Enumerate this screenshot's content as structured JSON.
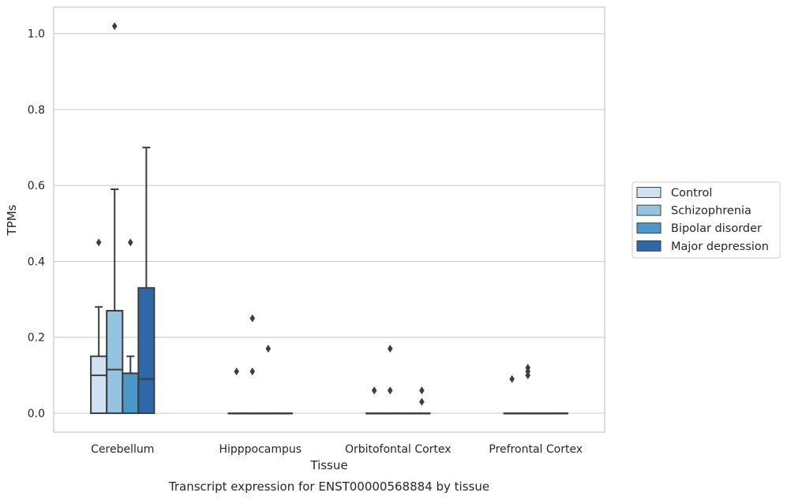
{
  "chart_data": {
    "type": "boxplot",
    "caption": "Transcript expression for ENST00000568884 by tissue",
    "xlabel": "Tissue",
    "ylabel": "TPMs",
    "ylim": [
      -0.05,
      1.07
    ],
    "yticks": [
      "0.0",
      "0.2",
      "0.4",
      "0.6",
      "0.8",
      "1.0"
    ],
    "grid": "horizontal",
    "legend_position": "right-outside",
    "categories": [
      "Cerebellum",
      "Hipppocampus",
      "Orbitofontal Cortex",
      "Prefrontal Cortex"
    ],
    "series": [
      {
        "name": "Control",
        "color": "#d0e1f2",
        "boxes": [
          {
            "q1": 0,
            "median": 0.1,
            "q3": 0.15,
            "whislo": 0,
            "whishi": 0.28,
            "fliers": [
              0.45
            ]
          },
          {
            "q1": 0,
            "median": 0,
            "q3": 0,
            "whislo": 0,
            "whishi": 0,
            "fliers": [
              0.11
            ]
          },
          {
            "q1": 0,
            "median": 0,
            "q3": 0,
            "whislo": 0,
            "whishi": 0,
            "fliers": [
              0.06
            ]
          },
          {
            "q1": 0,
            "median": 0,
            "q3": 0,
            "whislo": 0,
            "whishi": 0,
            "fliers": [
              0.09
            ]
          }
        ]
      },
      {
        "name": "Schizophrenia",
        "color": "#94c4df",
        "boxes": [
          {
            "q1": 0,
            "median": 0.115,
            "q3": 0.27,
            "whislo": 0,
            "whishi": 0.59,
            "fliers": [
              1.02
            ]
          },
          {
            "q1": 0,
            "median": 0,
            "q3": 0,
            "whislo": 0,
            "whishi": 0,
            "fliers": [
              0.25,
              0.11
            ]
          },
          {
            "q1": 0,
            "median": 0,
            "q3": 0,
            "whislo": 0,
            "whishi": 0,
            "fliers": [
              0.17,
              0.06
            ]
          },
          {
            "q1": 0,
            "median": 0,
            "q3": 0,
            "whislo": 0,
            "whishi": 0,
            "fliers": [
              0.12,
              0.11,
              0.1
            ]
          }
        ]
      },
      {
        "name": "Bipolar disorder",
        "color": "#4a98c9",
        "boxes": [
          {
            "q1": 0,
            "median": 0.105,
            "q3": 0.105,
            "whislo": 0,
            "whishi": 0.15,
            "fliers": [
              0.45
            ]
          },
          {
            "q1": 0,
            "median": 0,
            "q3": 0,
            "whislo": 0,
            "whishi": 0,
            "fliers": [
              0.17
            ]
          },
          {
            "q1": 0,
            "median": 0,
            "q3": 0,
            "whislo": 0,
            "whishi": 0,
            "fliers": []
          },
          {
            "q1": 0,
            "median": 0,
            "q3": 0,
            "whislo": 0,
            "whishi": 0,
            "fliers": []
          }
        ]
      },
      {
        "name": "Major depression",
        "color": "#2d69a9",
        "boxes": [
          {
            "q1": 0,
            "median": 0.09,
            "q3": 0.33,
            "whislo": 0,
            "whishi": 0.7,
            "fliers": []
          },
          {
            "q1": 0,
            "median": 0,
            "q3": 0,
            "whislo": 0,
            "whishi": 0,
            "fliers": []
          },
          {
            "q1": 0,
            "median": 0,
            "q3": 0,
            "whislo": 0,
            "whishi": 0,
            "fliers": [
              0.06,
              0.03
            ]
          },
          {
            "q1": 0,
            "median": 0,
            "q3": 0,
            "whislo": 0,
            "whishi": 0,
            "fliers": []
          }
        ]
      }
    ]
  }
}
